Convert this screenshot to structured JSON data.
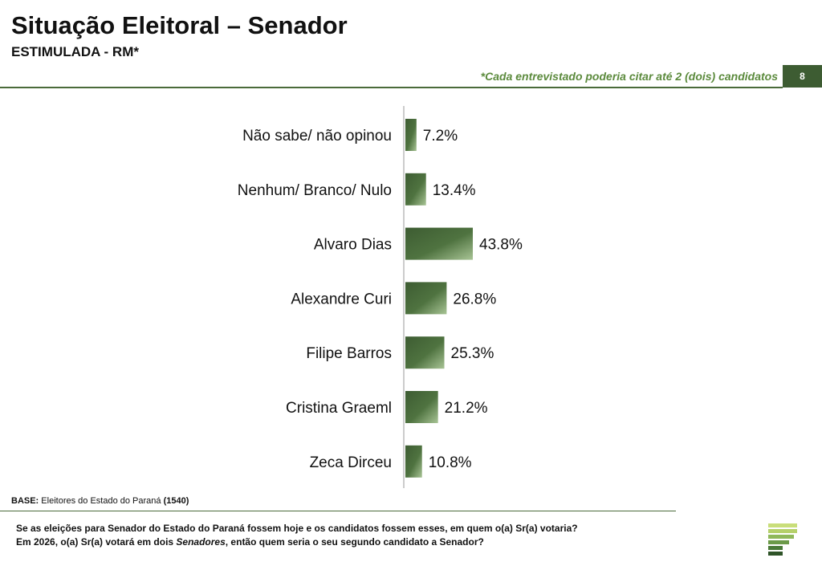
{
  "header": {
    "title": "Situação Eleitoral – Senador",
    "subtitle": "ESTIMULADA - RM*",
    "note": "*Cada entrevistado poderia citar até 2 (dois) candidatos",
    "page_number": "8"
  },
  "footer": {
    "base_label": "BASE:",
    "base_text": "Eleitores do Estado do Paraná",
    "base_count": "(1540)",
    "question_line1": "Se as eleições para Senador do Estado do Paraná fossem hoje e os candidatos fossem esses, em quem o(a) Sr(a) votaria?",
    "question_line2_pre": "Em 2026, o(a) Sr(a) votará em dois ",
    "question_line2_em": "Senadores",
    "question_line2_post": ", então quem seria o seu segundo candidato a Senador?"
  },
  "colors": {
    "bar_dark": "#3d5c32",
    "bar_light": "#a8c495",
    "accent": "#5b8a3c"
  },
  "chart_data": {
    "type": "bar",
    "orientation": "horizontal",
    "title": "Situação Eleitoral – Senador",
    "categories": [
      "Não sabe/ não opinou",
      "Nenhum/ Branco/ Nulo",
      "Alvaro Dias",
      "Alexandre Curi",
      "Filipe Barros",
      "Cristina Graeml",
      "Zeca Dirceu"
    ],
    "values": [
      7.2,
      13.4,
      43.8,
      26.8,
      25.3,
      21.2,
      10.8
    ],
    "value_labels": [
      "7.2%",
      "13.4%",
      "43.8%",
      "26.8%",
      "25.3%",
      "21.2%",
      "10.8%"
    ],
    "xlim": [
      0,
      100
    ],
    "unit": "%"
  }
}
